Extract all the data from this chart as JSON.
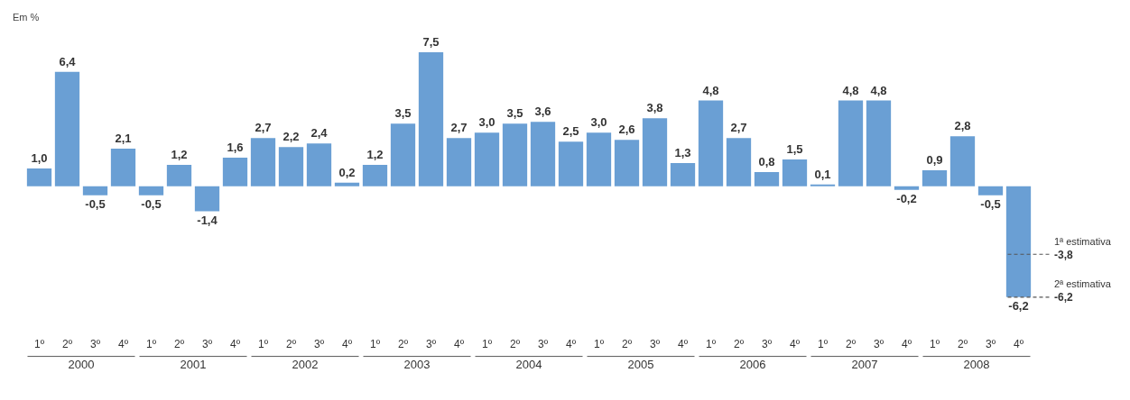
{
  "chart_data": {
    "type": "bar",
    "ylabel": "Em %",
    "categories": [
      "1º",
      "2º",
      "3º",
      "4º",
      "1º",
      "2º",
      "3º",
      "4º",
      "1º",
      "2º",
      "3º",
      "4º",
      "1º",
      "2º",
      "3º",
      "4º",
      "1º",
      "2º",
      "3º",
      "4º",
      "1º",
      "2º",
      "3º",
      "4º",
      "1º",
      "2º",
      "3º",
      "4º",
      "1º",
      "2º",
      "3º",
      "4º",
      "1º",
      "2º",
      "3º",
      "4º"
    ],
    "values": [
      1.0,
      6.4,
      -0.5,
      2.1,
      -0.5,
      1.2,
      -1.4,
      1.6,
      2.7,
      2.2,
      2.4,
      0.2,
      1.2,
      3.5,
      7.5,
      2.7,
      3.0,
      3.5,
      3.6,
      2.5,
      3.0,
      2.6,
      3.8,
      1.3,
      4.8,
      2.7,
      0.8,
      1.5,
      0.1,
      4.8,
      4.8,
      -0.2,
      0.9,
      2.8,
      -0.5,
      -6.2
    ],
    "value_labels": [
      "1,0",
      "6,4",
      "-0,5",
      "2,1",
      "-0,5",
      "1,2",
      "-1,4",
      "1,6",
      "2,7",
      "2,2",
      "2,4",
      "0,2",
      "1,2",
      "3,5",
      "7,5",
      "2,7",
      "3,0",
      "3,5",
      "3,6",
      "2,5",
      "3,0",
      "2,6",
      "3,8",
      "1,3",
      "4,8",
      "2,7",
      "0,8",
      "1,5",
      "0,1",
      "4,8",
      "4,8",
      "-0,2",
      "0,9",
      "2,8",
      "-0,5",
      "-6,2"
    ],
    "color": "#6a9fd4",
    "annotations": [
      "2000",
      "2001",
      "2002",
      "2003",
      "2004",
      "2005",
      "2006",
      "2007",
      "2008",
      "-3,8",
      "-6,2"
    ],
    "ref_lines": [
      {
        "axis": "y",
        "value": -3.8,
        "label": "1ª estimativa",
        "line_style": "dashed"
      },
      {
        "axis": "y",
        "value": -6.2,
        "label": "2ª estimativa",
        "line_style": "dashed"
      }
    ],
    "legend": false,
    "grid": false
  }
}
